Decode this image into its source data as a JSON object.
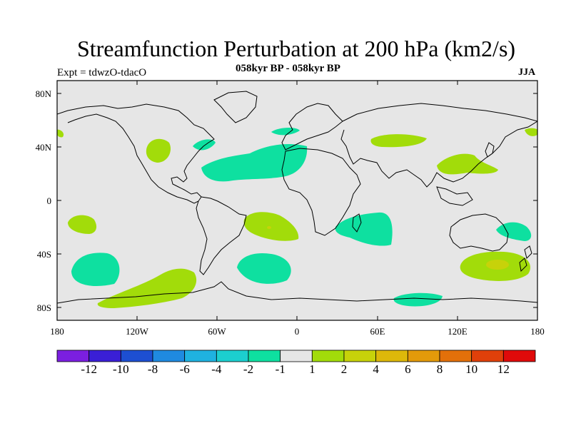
{
  "title": "Streamfunction Perturbation at 200 hPa (km2/s)",
  "left_label": "Expt = tdwzO-tdacO",
  "center_label": "058kyr BP - 058kyr BP",
  "right_label": "JJA",
  "lat_ticks": [
    "80N",
    "40N",
    "0",
    "40S",
    "80S"
  ],
  "lon_ticks": [
    "180",
    "120W",
    "60W",
    "0",
    "60E",
    "120E",
    "180"
  ],
  "colorbar": {
    "colors": [
      "#7b1fe0",
      "#3a1fd6",
      "#1d4fd2",
      "#1f8ae0",
      "#1fb2e0",
      "#1ccfcf",
      "#0ee0a0",
      "#e6e6e6",
      "#a2dc0a",
      "#c7d20a",
      "#ddb80a",
      "#e39a0a",
      "#e3700a",
      "#e0400a",
      "#e00a0a"
    ],
    "labels": [
      "-12",
      "-10",
      "-8",
      "-6",
      "-4",
      "-2",
      "-1",
      "1",
      "2",
      "4",
      "6",
      "8",
      "10",
      "12"
    ]
  },
  "colors": {
    "background": "#e6e6e6",
    "negative": "#0ee0a0",
    "positive": "#a2dc0a",
    "strong_positive": "#c7d20a"
  }
}
